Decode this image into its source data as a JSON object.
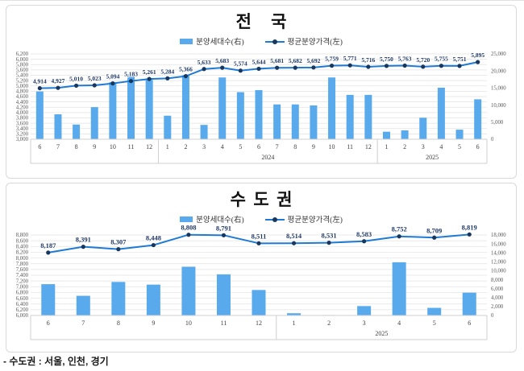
{
  "page": {
    "footer_note": "- 수도권 : 서울, 인천, 경기"
  },
  "colors": {
    "bar": "#58aaec",
    "line": "#1f7ad4",
    "marker": "#17375e",
    "data_label": "#1f3864",
    "grid": "#e2e2e2",
    "axis_box": "#cfcfcf",
    "tick_text": "#595959"
  },
  "chart_data": [
    {
      "type": "combo-bar-line",
      "title": "전 국",
      "legend": [
        {
          "name": "분양세대수(右)",
          "type": "bar"
        },
        {
          "name": "평균분양가격(左)",
          "type": "line"
        }
      ],
      "categories": [
        "6",
        "7",
        "8",
        "9",
        "10",
        "11",
        "12",
        "1",
        "2",
        "3",
        "4",
        "5",
        "6",
        "7",
        "8",
        "9",
        "10",
        "11",
        "12",
        "1",
        "2",
        "3",
        "4",
        "5",
        "6"
      ],
      "year_groups": [
        {
          "label": "",
          "count": 7
        },
        {
          "label": "2024",
          "count": 12
        },
        {
          "label": "2025",
          "count": 6
        }
      ],
      "left_axis": {
        "min": 3000,
        "max": 6200,
        "step": 200
      },
      "right_axis": {
        "min": 0,
        "max": 25000,
        "step": 5000
      },
      "series": [
        {
          "name": "분양세대수(右)",
          "type": "bar",
          "axis": "right",
          "values": [
            14000,
            7300,
            4300,
            9400,
            16700,
            19100,
            17400,
            6900,
            18800,
            4200,
            18100,
            13800,
            14400,
            10200,
            10200,
            9900,
            18100,
            13000,
            13000,
            2200,
            2600,
            6300,
            15100,
            2800,
            11700
          ]
        },
        {
          "name": "평균분양가격(左)",
          "type": "line",
          "axis": "left",
          "labels_shown": true,
          "values": [
            4914,
            4927,
            5010,
            5023,
            5094,
            5183,
            5261,
            5284,
            5366,
            5633,
            5683,
            5574,
            5644,
            5681,
            5682,
            5692,
            5759,
            5771,
            5716,
            5750,
            5763,
            5720,
            5755,
            5751,
            5895
          ]
        }
      ]
    },
    {
      "type": "combo-bar-line",
      "title": "수도권",
      "legend": [
        {
          "name": "분양세대수(右)",
          "type": "bar"
        },
        {
          "name": "평균분양가격(左)",
          "type": "line"
        }
      ],
      "categories": [
        "6",
        "7",
        "8",
        "9",
        "10",
        "11",
        "12",
        "1",
        "2",
        "3",
        "4",
        "5",
        "6"
      ],
      "year_groups": [
        {
          "label": "",
          "count": 7
        },
        {
          "label": "2025",
          "count": 6
        }
      ],
      "left_axis": {
        "min": 6000,
        "max": 8800,
        "step": 200
      },
      "right_axis": {
        "min": 0,
        "max": 18000,
        "step": 2000
      },
      "series": [
        {
          "name": "분양세대수(右)",
          "type": "bar",
          "axis": "right",
          "values": [
            7000,
            4400,
            7500,
            6900,
            10900,
            9200,
            5700,
            500,
            100,
            2100,
            11900,
            1700,
            5100
          ]
        },
        {
          "name": "평균분양가격(左)",
          "type": "line",
          "axis": "left",
          "labels_shown": true,
          "values": [
            8187,
            8391,
            8307,
            8448,
            8808,
            8791,
            8511,
            8514,
            8531,
            8583,
            8752,
            8709,
            8819
          ]
        }
      ]
    }
  ]
}
